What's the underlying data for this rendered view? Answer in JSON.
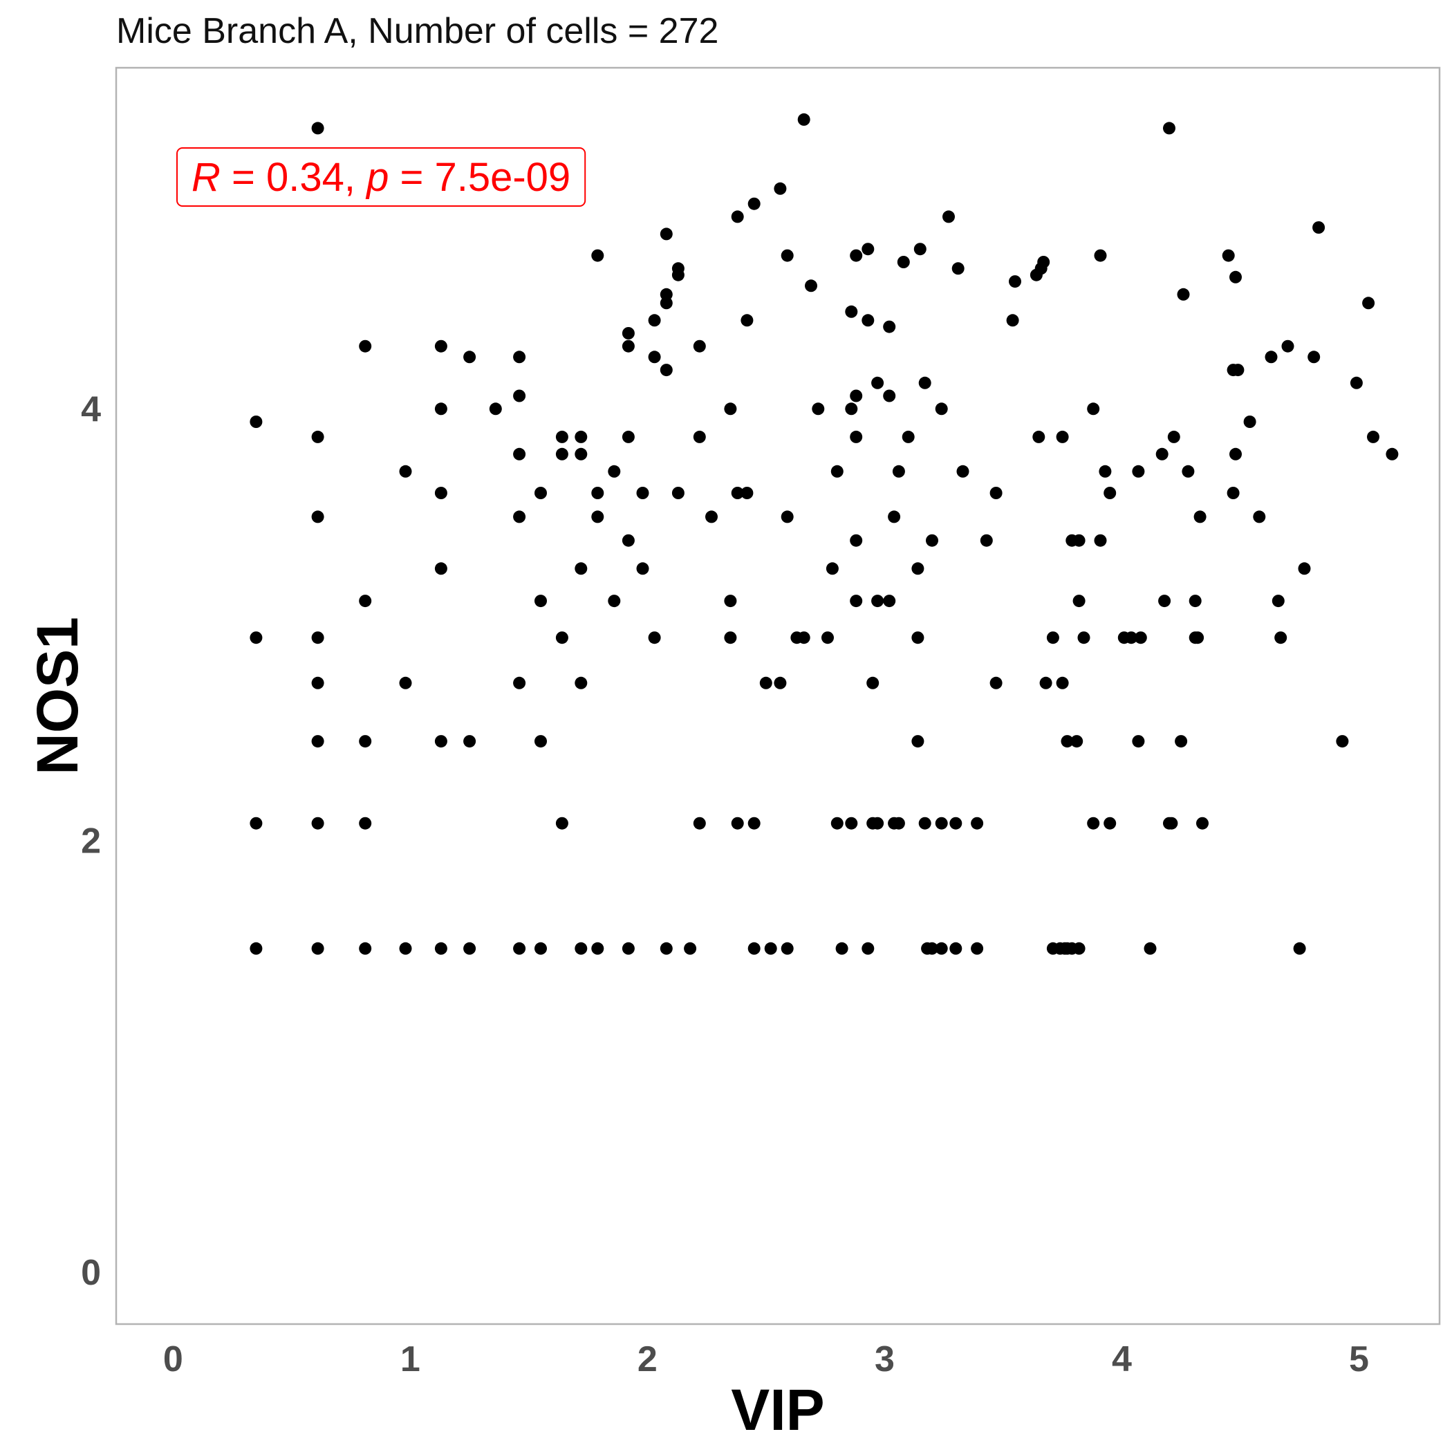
{
  "chart_data": {
    "type": "scatter",
    "title": "Mice Branch A, Number of cells = 272",
    "xlabel": "VIP",
    "ylabel": "NOS1",
    "xlim": [
      -0.24,
      5.34
    ],
    "ylim": [
      -0.24,
      5.58
    ],
    "xticks": [
      0,
      1,
      2,
      3,
      4,
      5
    ],
    "yticks": [
      0,
      2,
      4
    ],
    "grid": false,
    "point_color": "#000000",
    "annotation": {
      "text_parts": [
        "R",
        " = 0.34, ",
        "p",
        " = 7.5e-09"
      ],
      "color": "#ff0000"
    },
    "points": [
      [
        0.35,
        3.94
      ],
      [
        0.35,
        2.94
      ],
      [
        0.35,
        2.08
      ],
      [
        0.35,
        1.5
      ],
      [
        0.61,
        5.3
      ],
      [
        0.61,
        3.87
      ],
      [
        0.61,
        3.5
      ],
      [
        0.61,
        2.94
      ],
      [
        0.61,
        2.73
      ],
      [
        0.61,
        2.46
      ],
      [
        0.61,
        2.08
      ],
      [
        0.61,
        1.5
      ],
      [
        0.81,
        4.29
      ],
      [
        0.81,
        3.11
      ],
      [
        0.81,
        2.46
      ],
      [
        0.81,
        2.08
      ],
      [
        0.81,
        1.5
      ],
      [
        0.98,
        3.71
      ],
      [
        0.98,
        2.73
      ],
      [
        0.98,
        1.5
      ],
      [
        1.13,
        4.29
      ],
      [
        1.13,
        4.0
      ],
      [
        1.13,
        3.61
      ],
      [
        1.13,
        3.26
      ],
      [
        1.13,
        2.46
      ],
      [
        1.13,
        1.5
      ],
      [
        1.25,
        4.24
      ],
      [
        1.25,
        2.46
      ],
      [
        1.25,
        1.5
      ],
      [
        1.36,
        4.0
      ],
      [
        1.46,
        4.24
      ],
      [
        1.46,
        4.06
      ],
      [
        1.46,
        3.79
      ],
      [
        1.46,
        3.5
      ],
      [
        1.46,
        2.73
      ],
      [
        1.46,
        1.5
      ],
      [
        1.55,
        3.61
      ],
      [
        1.55,
        3.11
      ],
      [
        1.55,
        2.46
      ],
      [
        1.55,
        1.5
      ],
      [
        1.64,
        3.87
      ],
      [
        1.64,
        3.79
      ],
      [
        1.64,
        2.94
      ],
      [
        1.64,
        2.08
      ],
      [
        1.72,
        3.87
      ],
      [
        1.72,
        3.79
      ],
      [
        1.72,
        3.26
      ],
      [
        1.72,
        2.73
      ],
      [
        1.72,
        1.5
      ],
      [
        1.79,
        4.71
      ],
      [
        1.79,
        3.61
      ],
      [
        1.79,
        3.5
      ],
      [
        1.79,
        1.5
      ],
      [
        1.86,
        3.71
      ],
      [
        1.86,
        3.11
      ],
      [
        1.92,
        4.35
      ],
      [
        1.92,
        4.29
      ],
      [
        1.92,
        3.87
      ],
      [
        1.92,
        3.39
      ],
      [
        1.92,
        1.5
      ],
      [
        1.98,
        3.61
      ],
      [
        1.98,
        3.26
      ],
      [
        2.03,
        4.41
      ],
      [
        2.03,
        4.24
      ],
      [
        2.03,
        2.94
      ],
      [
        2.08,
        4.81
      ],
      [
        2.08,
        4.53
      ],
      [
        2.08,
        4.49
      ],
      [
        2.08,
        4.18
      ],
      [
        2.08,
        1.5
      ],
      [
        2.13,
        4.65
      ],
      [
        2.13,
        4.62
      ],
      [
        2.13,
        3.61
      ],
      [
        2.18,
        1.5
      ],
      [
        2.22,
        4.29
      ],
      [
        2.22,
        3.87
      ],
      [
        2.22,
        2.08
      ],
      [
        2.27,
        3.5
      ],
      [
        2.35,
        4.0
      ],
      [
        2.35,
        3.11
      ],
      [
        2.35,
        2.94
      ],
      [
        2.38,
        4.89
      ],
      [
        2.38,
        3.61
      ],
      [
        2.38,
        2.08
      ],
      [
        2.42,
        4.41
      ],
      [
        2.42,
        3.61
      ],
      [
        2.45,
        4.95
      ],
      [
        2.45,
        2.08
      ],
      [
        2.45,
        1.5
      ],
      [
        2.5,
        2.73
      ],
      [
        2.52,
        1.5
      ],
      [
        2.56,
        5.02
      ],
      [
        2.56,
        2.73
      ],
      [
        2.59,
        4.71
      ],
      [
        2.59,
        3.5
      ],
      [
        2.59,
        1.5
      ],
      [
        2.63,
        2.94
      ],
      [
        2.66,
        5.34
      ],
      [
        2.66,
        2.94
      ],
      [
        2.69,
        4.57
      ],
      [
        2.72,
        4.0
      ],
      [
        2.76,
        2.94
      ],
      [
        2.78,
        3.26
      ],
      [
        2.8,
        3.71
      ],
      [
        2.8,
        2.08
      ],
      [
        2.82,
        1.5
      ],
      [
        2.86,
        4.45
      ],
      [
        2.86,
        4.0
      ],
      [
        2.86,
        2.08
      ],
      [
        2.88,
        4.71
      ],
      [
        2.88,
        4.06
      ],
      [
        2.88,
        3.87
      ],
      [
        2.88,
        3.39
      ],
      [
        2.88,
        3.11
      ],
      [
        2.93,
        4.74
      ],
      [
        2.93,
        4.41
      ],
      [
        2.93,
        1.5
      ],
      [
        2.95,
        2.73
      ],
      [
        2.95,
        2.08
      ],
      [
        2.97,
        4.12
      ],
      [
        2.97,
        3.11
      ],
      [
        2.97,
        2.08
      ],
      [
        3.02,
        4.38
      ],
      [
        3.02,
        4.06
      ],
      [
        3.02,
        3.11
      ],
      [
        3.04,
        3.5
      ],
      [
        3.04,
        2.08
      ],
      [
        3.06,
        3.71
      ],
      [
        3.06,
        2.08
      ],
      [
        3.08,
        4.68
      ],
      [
        3.1,
        3.87
      ],
      [
        3.14,
        3.26
      ],
      [
        3.14,
        2.94
      ],
      [
        3.14,
        2.46
      ],
      [
        3.15,
        4.74
      ],
      [
        3.17,
        4.12
      ],
      [
        3.17,
        2.08
      ],
      [
        3.18,
        1.5
      ],
      [
        3.2,
        3.39
      ],
      [
        3.2,
        1.5
      ],
      [
        3.24,
        4.0
      ],
      [
        3.24,
        2.08
      ],
      [
        3.24,
        1.5
      ],
      [
        3.27,
        4.89
      ],
      [
        3.3,
        2.08
      ],
      [
        3.3,
        1.5
      ],
      [
        3.31,
        4.65
      ],
      [
        3.33,
        3.71
      ],
      [
        3.39,
        2.08
      ],
      [
        3.39,
        1.5
      ],
      [
        3.43,
        3.39
      ],
      [
        3.47,
        3.61
      ],
      [
        3.47,
        2.73
      ],
      [
        3.54,
        4.41
      ],
      [
        3.55,
        4.59
      ],
      [
        3.64,
        4.62
      ],
      [
        3.65,
        3.87
      ],
      [
        3.66,
        4.65
      ],
      [
        3.67,
        4.68
      ],
      [
        3.68,
        2.73
      ],
      [
        3.71,
        2.94
      ],
      [
        3.71,
        1.5
      ],
      [
        3.74,
        1.5
      ],
      [
        3.75,
        3.87
      ],
      [
        3.75,
        2.73
      ],
      [
        3.76,
        1.5
      ],
      [
        3.77,
        2.46
      ],
      [
        3.77,
        1.5
      ],
      [
        3.79,
        3.39
      ],
      [
        3.79,
        1.5
      ],
      [
        3.81,
        2.46
      ],
      [
        3.82,
        3.39
      ],
      [
        3.82,
        3.11
      ],
      [
        3.82,
        1.5
      ],
      [
        3.84,
        2.94
      ],
      [
        3.88,
        4.0
      ],
      [
        3.88,
        2.08
      ],
      [
        3.91,
        4.71
      ],
      [
        3.91,
        3.39
      ],
      [
        3.93,
        3.71
      ],
      [
        3.95,
        3.61
      ],
      [
        3.95,
        2.08
      ],
      [
        4.01,
        2.94
      ],
      [
        4.04,
        2.94
      ],
      [
        4.07,
        3.71
      ],
      [
        4.07,
        2.46
      ],
      [
        4.08,
        2.94
      ],
      [
        4.12,
        1.5
      ],
      [
        4.17,
        3.79
      ],
      [
        4.18,
        3.11
      ],
      [
        4.2,
        5.3
      ],
      [
        4.2,
        2.08
      ],
      [
        4.21,
        2.08
      ],
      [
        4.22,
        3.87
      ],
      [
        4.25,
        2.46
      ],
      [
        4.26,
        4.53
      ],
      [
        4.28,
        3.71
      ],
      [
        4.31,
        3.11
      ],
      [
        4.31,
        2.94
      ],
      [
        4.32,
        2.94
      ],
      [
        4.33,
        3.5
      ],
      [
        4.34,
        2.08
      ],
      [
        4.45,
        4.71
      ],
      [
        4.47,
        4.18
      ],
      [
        4.47,
        3.61
      ],
      [
        4.48,
        4.61
      ],
      [
        4.48,
        3.79
      ],
      [
        4.49,
        4.18
      ],
      [
        4.54,
        3.94
      ],
      [
        4.58,
        3.5
      ],
      [
        4.63,
        4.24
      ],
      [
        4.66,
        3.11
      ],
      [
        4.67,
        2.94
      ],
      [
        4.7,
        4.29
      ],
      [
        4.75,
        1.5
      ],
      [
        4.77,
        3.26
      ],
      [
        4.81,
        4.24
      ],
      [
        4.83,
        4.84
      ],
      [
        4.93,
        2.46
      ],
      [
        4.99,
        4.12
      ],
      [
        5.04,
        4.49
      ],
      [
        5.06,
        3.87
      ],
      [
        5.14,
        3.79
      ]
    ]
  }
}
